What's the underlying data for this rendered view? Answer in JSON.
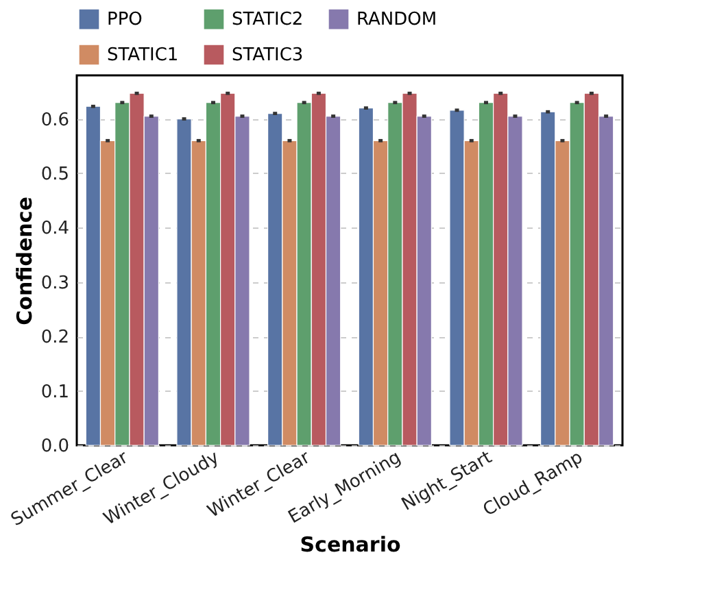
{
  "chart_data": {
    "type": "bar",
    "xlabel": "Scenario",
    "ylabel": "Confidence",
    "categories": [
      "Summer_Clear",
      "Winter_Cloudy",
      "Winter_Clear",
      "Early_Morning",
      "Night_Start",
      "Cloud_Ramp"
    ],
    "series": [
      {
        "name": "PPO",
        "color": "#5874a4",
        "values": [
          0.623,
          0.6,
          0.61,
          0.62,
          0.616,
          0.613
        ],
        "errors": [
          0.003,
          0.003,
          0.003,
          0.003,
          0.003,
          0.003
        ]
      },
      {
        "name": "STATIC1",
        "color": "#d08b63",
        "values": [
          0.56,
          0.56,
          0.56,
          0.56,
          0.56,
          0.56
        ],
        "errors": [
          0.003,
          0.003,
          0.003,
          0.003,
          0.003,
          0.003
        ]
      },
      {
        "name": "STATIC2",
        "color": "#5e9f6d",
        "values": [
          0.63,
          0.63,
          0.63,
          0.63,
          0.63,
          0.63
        ],
        "errors": [
          0.003,
          0.003,
          0.003,
          0.003,
          0.003,
          0.003
        ]
      },
      {
        "name": "STATIC3",
        "color": "#b85a5f",
        "values": [
          0.647,
          0.647,
          0.647,
          0.647,
          0.647,
          0.647
        ],
        "errors": [
          0.003,
          0.003,
          0.003,
          0.003,
          0.003,
          0.003
        ]
      },
      {
        "name": "RANDOM",
        "color": "#8679ad",
        "values": [
          0.605,
          0.605,
          0.605,
          0.605,
          0.605,
          0.605
        ],
        "errors": [
          0.003,
          0.003,
          0.003,
          0.003,
          0.003,
          0.003
        ]
      }
    ],
    "ylim": [
      0,
      0.68
    ],
    "yticks": [
      {
        "value": 0,
        "label": "0.0"
      },
      {
        "value": 0.1,
        "label": "0.1"
      },
      {
        "value": 0.2,
        "label": "0.2"
      },
      {
        "value": 0.3,
        "label": "0.3"
      },
      {
        "value": 0.4,
        "label": "0.4"
      },
      {
        "value": 0.5,
        "label": "0.5"
      },
      {
        "value": 0.6,
        "label": "0.6"
      }
    ],
    "grid": "y",
    "legend": "top"
  }
}
